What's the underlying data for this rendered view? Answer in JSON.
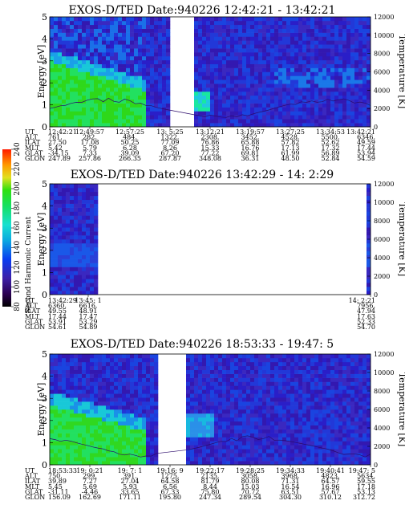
{
  "colorbar": {
    "label": "Second Harmonic Current",
    "ticks": [
      "80",
      "100",
      "120",
      "140",
      "160",
      "180",
      "200",
      "220",
      "240"
    ]
  },
  "info_labels": [
    "UT",
    "ALT",
    "ILAT",
    "MLT",
    "GLAT",
    "GLON"
  ],
  "chart_data": [
    {
      "type": "heatmap",
      "title": "EXOS-D/TED   Date:940226  12:42:21 - 13:42:21",
      "ylabel": "Energy [eV]",
      "ylabel2": "Temperature [K]",
      "ylim": [
        0,
        5
      ],
      "y2lim": [
        0,
        12000
      ],
      "yticks": [
        "0",
        "1",
        "2",
        "3",
        "4",
        "5"
      ],
      "y2ticks": [
        "0",
        "2000",
        "4000",
        "6000",
        "8000",
        "10000",
        "12000"
      ],
      "data_gaps": [
        [
          0.37,
          0.45
        ]
      ],
      "info_columns": [
        [
          "12:42:21",
          "761.",
          "27.50",
          "5.42",
          "-34.15",
          "247.89"
        ],
        [
          "12:49:57",
          "282.",
          "17.08",
          "5.79",
          "7.33",
          "257.86"
        ],
        [
          "12:57:25",
          "484.",
          "50.25",
          "6.28",
          "39.09",
          "266.35"
        ],
        [
          "13: 5:25",
          "1322.",
          "77.09",
          "8.26",
          "67.20",
          "287.87"
        ],
        [
          "13:12:21",
          "2308.",
          "76.86",
          "15.33",
          "77.22",
          "348.08"
        ],
        [
          "13:19:57",
          "3452.",
          "65.88",
          "16.76",
          "69.81",
          "36.31"
        ],
        [
          "13:27:25",
          "4528.",
          "57.82",
          "17.13",
          "61.99",
          "48.50"
        ],
        [
          "13:34:53",
          "5500.",
          "52.62",
          "17.32",
          "56.89",
          "52.84"
        ],
        [
          "13:42:21",
          "6346.",
          "49.59",
          "17.44",
          "53.94",
          "54.59"
        ]
      ]
    },
    {
      "type": "heatmap",
      "title": "EXOS-D/TED   Date:940226  13:42:29 - 14: 2:29",
      "ylabel": "Energy [eV]",
      "ylabel2": "Temperature [K]",
      "ylim": [
        0,
        5
      ],
      "y2lim": [
        0,
        12000
      ],
      "yticks": [
        "0",
        "1",
        "2",
        "3",
        "4",
        "5"
      ],
      "y2ticks": [
        "0",
        "2000",
        "4000",
        "6000",
        "8000",
        "10000",
        "12000"
      ],
      "data_gaps": [
        [
          0.15,
          0.99
        ]
      ],
      "info_columns": [
        [
          "13:42:29",
          "6360.",
          "49.55",
          "17.44",
          "53.91",
          "54.61"
        ],
        [
          "13:45: 1",
          "6616.",
          "48.91",
          "17.47",
          "53.29",
          "54.89"
        ],
        [
          "14: 2:21",
          "7956.",
          "47.94",
          "17.63",
          "52.33",
          "54.70"
        ]
      ]
    },
    {
      "type": "heatmap",
      "title": "EXOS-D/TED   Date:940226  18:53:33 - 19:47: 5",
      "ylabel": "Energy [eV]",
      "ylabel2": "Temperature [K]",
      "ylim": [
        0,
        5
      ],
      "y2lim": [
        0,
        12000
      ],
      "yticks": [
        "0",
        "1",
        "2",
        "3",
        "4",
        "5"
      ],
      "y2ticks": [
        "0",
        "2000",
        "4000",
        "6000",
        "8000",
        "10000",
        "12000"
      ],
      "data_gaps": [
        [
          0.34,
          0.42
        ]
      ],
      "info_columns": [
        [
          "18:53:33",
          "750.",
          "39.89",
          "5.45",
          "-31.11",
          "156.09"
        ],
        [
          "19: 0:21",
          "299.",
          "7.27",
          "5.69",
          "-4.46",
          "162.69"
        ],
        [
          "19: 7: 1",
          "391.",
          "27.04",
          "5.93",
          "33.65",
          "171.11"
        ],
        [
          "19:16: 9",
          "1275.",
          "64.58",
          "6.56",
          "67.33",
          "195.80"
        ],
        [
          "19:22:17",
          "2135.",
          "81.79",
          "8.44",
          "75.80",
          "247.34"
        ],
        [
          "19:28:25",
          "3058.",
          "80.08",
          "15.03",
          "70.72",
          "289.54"
        ],
        [
          "19:34:33",
          "3968.",
          "71.31",
          "16.54",
          "63.51",
          "304.30"
        ],
        [
          "19:40:41",
          "4823.",
          "64.57",
          "16.96",
          "57.67",
          "310.12"
        ],
        [
          "19:47: 5",
          "5634.",
          "59.55",
          "17.18",
          "53.13",
          "312.72"
        ]
      ]
    }
  ]
}
